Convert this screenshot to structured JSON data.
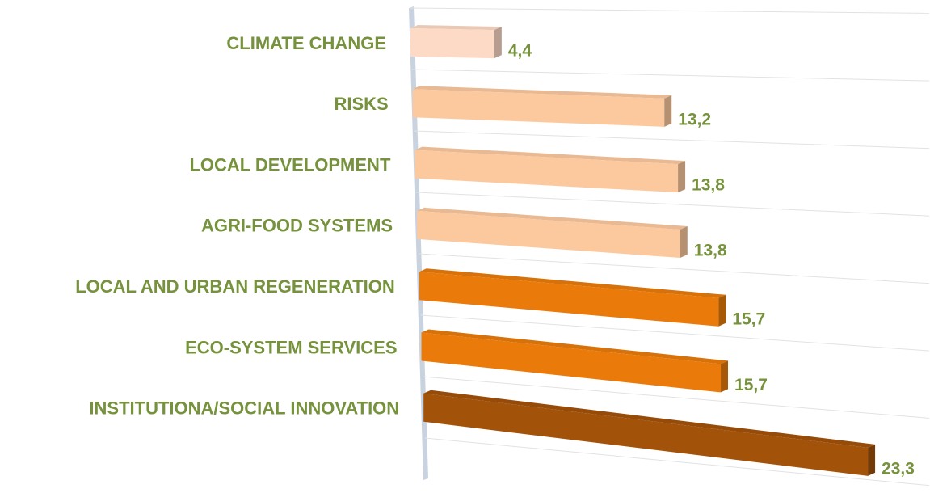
{
  "chart_data": {
    "type": "bar",
    "orientation": "horizontal",
    "categories": [
      "CLIMATE CHANGE",
      "RISKS",
      "LOCAL DEVELOPMENT",
      "AGRI-FOOD SYSTEMS",
      "LOCAL AND URBAN REGENERATION",
      "ECO-SYSTEM SERVICES",
      "INSTITUTIONA/SOCIAL INNOVATION"
    ],
    "values": [
      4.4,
      13.2,
      13.8,
      13.8,
      15.7,
      15.7,
      23.3
    ],
    "value_labels": [
      "4,4",
      "13,2",
      "13,8",
      "13,8",
      "15,7",
      "15,7",
      "23,3"
    ],
    "colors": [
      "#fddac6",
      "#fcc99f",
      "#fcc99f",
      "#fcc99f",
      "#ea7b0b",
      "#ea7b0b",
      "#a3520a"
    ],
    "xlim": [
      0,
      25
    ]
  }
}
